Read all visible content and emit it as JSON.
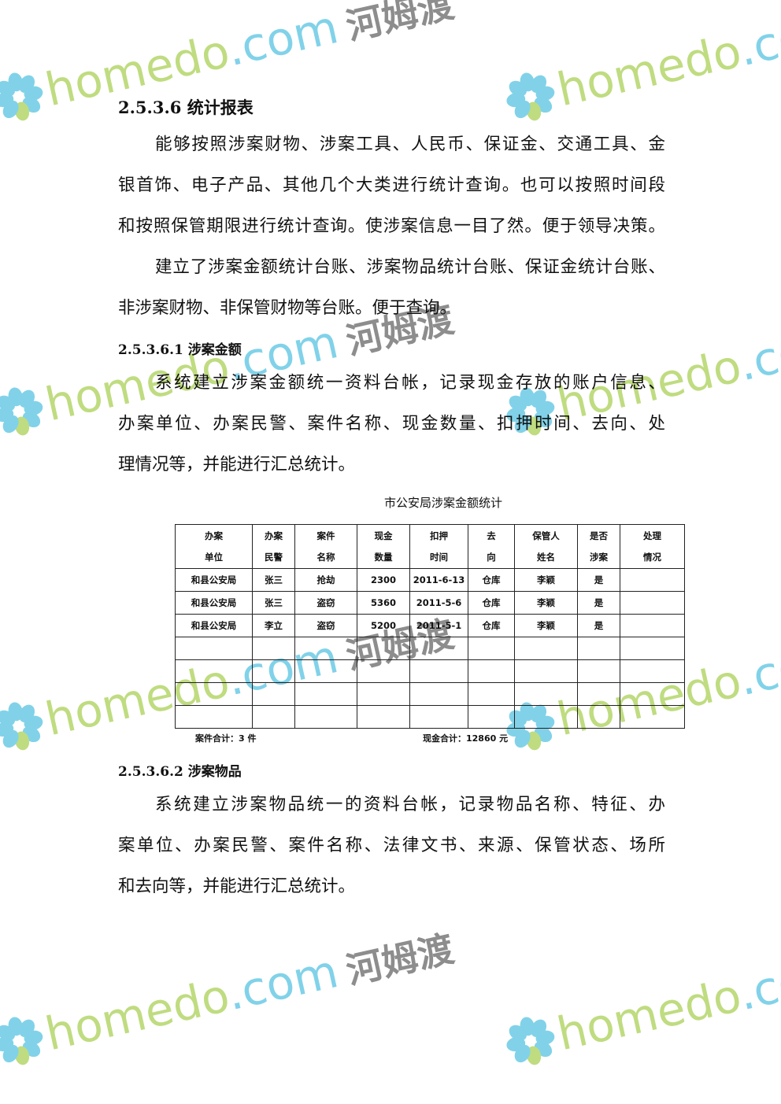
{
  "section_heading": "2.5.3.6 统计报表",
  "intro_paragraphs": [
    [
      "能够按照涉案财物、涉案工具、人民币、保证金、交通工具、金",
      "银首饰、电子产品、其他几个大类进行统计查询。也可以按照时间段",
      "和按照保管期限进行统计查询。使涉案信息一目了然。便于领导决策。"
    ],
    [
      "建立了涉案金额统计台账、涉案物品统计台账、保证金统计台账、",
      "非涉案财物、非保管财物等台账。便于查询。"
    ]
  ],
  "sub1": {
    "heading": "2.5.3.6.1 涉案金额",
    "lines": [
      "系统建立涉案金额统一资料台帐，记录现金存放的账户信息、",
      "办案单位、办案民警、案件名称、现金数量、扣押时间、去向、处",
      "理情况等，并能进行汇总统计。"
    ]
  },
  "table": {
    "title": "市公安局涉案金额统计",
    "headers": [
      [
        "办案",
        "单位"
      ],
      [
        "办案",
        "民警"
      ],
      [
        "案件",
        "名称"
      ],
      [
        "现金",
        "数量"
      ],
      [
        "扣押",
        "时间"
      ],
      [
        "去",
        "向"
      ],
      [
        "保管人",
        "姓名"
      ],
      [
        "是否",
        "涉案"
      ],
      [
        "处理",
        "情况"
      ]
    ],
    "rows": [
      [
        "和县公安局",
        "张三",
        "抢劫",
        "2300",
        "2011-6-13",
        "仓库",
        "李颖",
        "是",
        ""
      ],
      [
        "和县公安局",
        "张三",
        "盗窃",
        "5360",
        "2011-5-6",
        "仓库",
        "李颖",
        "是",
        ""
      ],
      [
        "和县公安局",
        "李立",
        "盗窃",
        "5200",
        "2011-5-1",
        "仓库",
        "李颖",
        "是",
        ""
      ],
      [
        "",
        "",
        "",
        "",
        "",
        "",
        "",
        "",
        ""
      ],
      [
        "",
        "",
        "",
        "",
        "",
        "",
        "",
        "",
        ""
      ],
      [
        "",
        "",
        "",
        "",
        "",
        "",
        "",
        "",
        ""
      ],
      [
        "",
        "",
        "",
        "",
        "",
        "",
        "",
        "",
        ""
      ]
    ],
    "case_total": "案件合计：3 件",
    "cash_total": "现金合计：12860 元"
  },
  "sub2": {
    "heading": "2.5.3.6.2 涉案物品",
    "lines": [
      "系统建立涉案物品统一的资料台帐，记录物品名称、特征、办",
      "案单位、办案民警、案件名称、法律文书、来源、保管状态、场所",
      "和去向等，并能进行汇总统计。"
    ]
  },
  "watermark": {
    "home": "homedo",
    ".com": ".com",
    "cn": "河姆渡",
    "colors": {
      "green": "#b5d66b",
      "blue": "#6ccbe6",
      "gray": "#7a7a7a"
    }
  }
}
